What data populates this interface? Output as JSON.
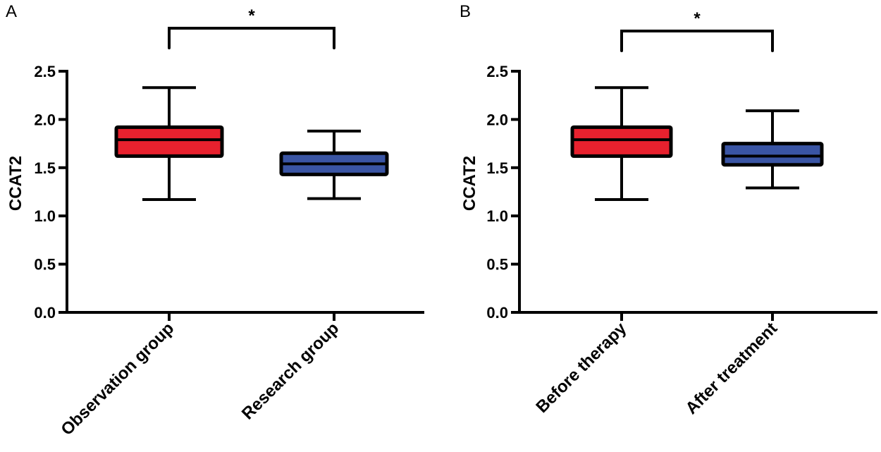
{
  "chart_data": [
    {
      "panel": "A",
      "type": "box",
      "ylabel": "CCAT2",
      "ylim": [
        0,
        2.5
      ],
      "yticks": [
        "0.0",
        "0.5",
        "1.0",
        "1.5",
        "2.0",
        "2.5"
      ],
      "categories": [
        "Observation group",
        "Research group"
      ],
      "boxes": [
        {
          "name": "Observation group",
          "min": 1.17,
          "q1": 1.62,
          "median": 1.79,
          "q3": 1.92,
          "max": 2.33,
          "color": "#e8212e"
        },
        {
          "name": "Research group",
          "min": 1.18,
          "q1": 1.43,
          "median": 1.54,
          "q3": 1.65,
          "max": 1.88,
          "color": "#3a55a4"
        }
      ],
      "significance": "*"
    },
    {
      "panel": "B",
      "type": "box",
      "ylabel": "CCAT2",
      "ylim": [
        0,
        2.5
      ],
      "yticks": [
        "0.0",
        "0.5",
        "1.0",
        "1.5",
        "2.0",
        "2.5"
      ],
      "categories": [
        "Before therapy",
        "After treatment"
      ],
      "boxes": [
        {
          "name": "Before therapy",
          "min": 1.17,
          "q1": 1.62,
          "median": 1.79,
          "q3": 1.92,
          "max": 2.33,
          "color": "#e8212e"
        },
        {
          "name": "After treatment",
          "min": 1.29,
          "q1": 1.53,
          "median": 1.62,
          "q3": 1.75,
          "max": 2.09,
          "color": "#3a55a4"
        }
      ],
      "significance": "*"
    }
  ]
}
